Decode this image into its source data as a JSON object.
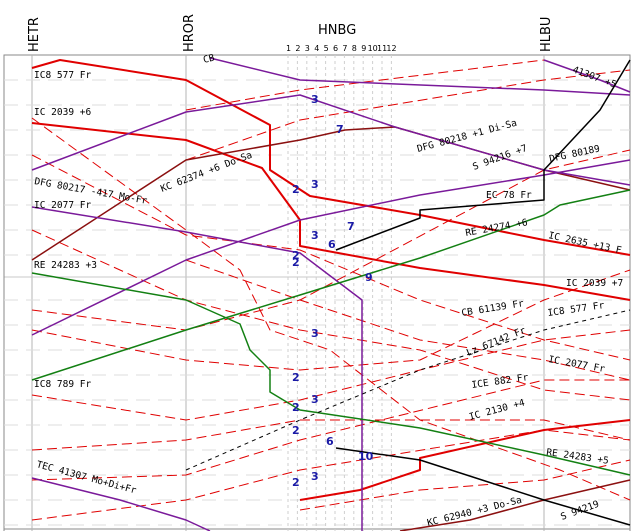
{
  "header": {
    "stations": [
      {
        "label": "HETR",
        "vertical": true
      },
      {
        "label": "HROR",
        "vertical": true
      },
      {
        "label": "HNBG",
        "vertical": false
      },
      {
        "label": "HLBU",
        "vertical": true
      }
    ],
    "tracks": [
      "1",
      "2",
      "3",
      "4",
      "5",
      "6",
      "7",
      "8",
      "9",
      "10",
      "11",
      "12"
    ]
  },
  "colors": {
    "red": "#e00000",
    "purple": "#7a1a9a",
    "darkred": "#8b1010",
    "green": "#138013",
    "black": "#000000",
    "platform_numbers": "#1a1aa6",
    "grid": "#b4b4b4"
  },
  "trains": [
    {
      "label": "CB",
      "color": "red"
    },
    {
      "label": "IC8 577 Fr",
      "color": "red"
    },
    {
      "label": "IC 2039 +6",
      "color": "red"
    },
    {
      "label": "DFG 80217 -417 Mo-Fr",
      "color": "purple"
    },
    {
      "label": "KC 62374 +6 Do-Sa",
      "color": "darkred"
    },
    {
      "label": "IC 2077 Fr",
      "color": "purple"
    },
    {
      "label": "RE 24283 +3",
      "color": "green"
    },
    {
      "label": "IC8 789 Fr",
      "color": "red"
    },
    {
      "label": "TEC 41307 Mo+Di+Fr",
      "color": "purple"
    },
    {
      "label": "41307 +5",
      "color": "purple"
    },
    {
      "label": "DFG 80218 +1 Di-Sa",
      "color": "darkred"
    },
    {
      "label": "S 94216 +7",
      "color": "black"
    },
    {
      "label": "DFG 80189",
      "color": "purple"
    },
    {
      "label": "EC 78 Fr",
      "color": "red"
    },
    {
      "label": "RE 24274 +6",
      "color": "green"
    },
    {
      "label": "IC 2635 +13 F",
      "color": "red"
    },
    {
      "label": "IC 2039 +7",
      "color": "red"
    },
    {
      "label": "CB 61139 Fr",
      "color": "red"
    },
    {
      "label": "IC8 577 Fr",
      "color": "red"
    },
    {
      "label": "Lz 67142 Fr",
      "color": "red"
    },
    {
      "label": "IC 2077 Fr",
      "color": "purple"
    },
    {
      "label": "ICE 882 Fr",
      "color": "red"
    },
    {
      "label": "IC 2130 +4",
      "color": "red"
    },
    {
      "label": "RE 24283 +5",
      "color": "green"
    },
    {
      "label": "KC 62940 +3 Do-Sa",
      "color": "darkred"
    },
    {
      "label": "S 94219",
      "color": "black"
    }
  ],
  "platform_numbers": [
    "3",
    "7",
    "2",
    "3",
    "3",
    "7",
    "6",
    "2",
    "2",
    "9",
    "3",
    "2",
    "2",
    "3",
    "2",
    "6",
    "10",
    "3",
    "2"
  ]
}
